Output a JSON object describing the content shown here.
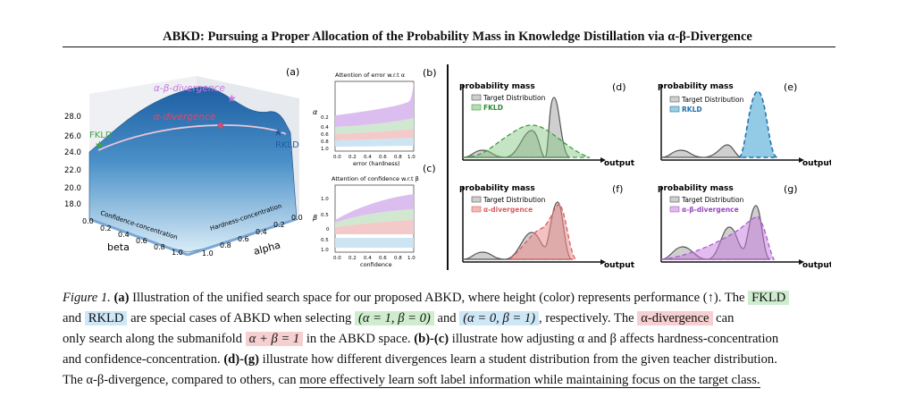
{
  "paper": {
    "title": "ABKD: Pursuing a Proper Allocation of the Probability Mass in Knowledge Distillation via α-β-Divergence"
  },
  "figure": {
    "panel_a": {
      "label": "(a)",
      "z_ticks": [
        "28.0",
        "26.0",
        "24.0",
        "22.0",
        "20.0",
        "18.0"
      ],
      "beta_ticks": [
        "0.0",
        "0.2",
        "0.4",
        "0.6",
        "0.8",
        "1.0"
      ],
      "alpha_ticks": [
        "1.0",
        "0.8",
        "0.6",
        "0.4",
        "0.2",
        "0.0"
      ],
      "beta_axis_label": "beta",
      "alpha_axis_label": "alpha",
      "confidence_edge_label": "Confidence-concentration",
      "hardness_edge_label": "Hardness-concentration",
      "fkld_label": "FKLD",
      "rkld_label": "RKLD",
      "ab_label": "α-β-divergence",
      "a_label": "α-divergence"
    },
    "panel_b": {
      "label": "(b)",
      "title": "Attention of error w.r.t α",
      "ylabel": "α",
      "xlabel": "error (hardness)",
      "y_ticks": [
        "0.2",
        "0.4",
        "0.6",
        "0.8",
        "1.0"
      ],
      "x_ticks": [
        "0.0",
        "0.2",
        "0.4",
        "0.6",
        "0.8",
        "1.0"
      ]
    },
    "panel_c": {
      "label": "(c)",
      "title": "Attention of confidence w.r.t β",
      "ylabel": "β",
      "xlabel": "confidence",
      "y_ticks": [
        "1.0",
        "0.5",
        "0",
        "0.5",
        "1.0"
      ],
      "x_ticks": [
        "0.0",
        "0.2",
        "0.4",
        "0.6",
        "0.8",
        "1.0"
      ]
    },
    "panel_d": {
      "label": "(d)",
      "ylabel": "probability mass",
      "xlabel": "output",
      "legend_target": "Target Distribution",
      "legend_student": "FKLD",
      "color": "#7cc47c"
    },
    "panel_e": {
      "label": "(e)",
      "ylabel": "probability mass",
      "xlabel": "output",
      "legend_target": "Target Distribution",
      "legend_student": "RKLD",
      "color": "#3a9fd0"
    },
    "panel_f": {
      "label": "(f)",
      "ylabel": "probability mass",
      "xlabel": "output",
      "legend_target": "Target Distribution",
      "legend_student": "α-divergence",
      "color": "#ec8d8d"
    },
    "panel_g": {
      "label": "(g)",
      "ylabel": "probability mass",
      "xlabel": "output",
      "legend_target": "Target Distribution",
      "legend_student": "α-β-divergence",
      "color": "#c779e0"
    }
  },
  "caption": {
    "figure_label": "Figure 1.",
    "a_bold": "(a)",
    "s1": " Illustration of the unified search space for our proposed ABKD, where height (color) represents performance (↑). The ",
    "fkld": "FKLD",
    "and": "and",
    "rkld": "RKLD",
    "s2": " are special cases of ABKD when selecting ",
    "cond1": "(α = 1, β = 0)",
    "and2": " and ",
    "cond2": "(α = 0, β = 1)",
    "s3": ", respectively. The ",
    "alpha_div": "α-divergence",
    "can": " can",
    "s4": "only search along the submanifold ",
    "submanifold": "α + β = 1",
    "s5": " in the ABKD space. ",
    "bc_bold": "(b)-(c)",
    "s6": " illustrate how adjusting α and β affects hardness-concentration",
    "s7": "and confidence-concentration. ",
    "dg_bold": "(d)-(g)",
    "s8": " illustrate how different divergences learn a student distribution from the given teacher distribution.",
    "s9": "The α-β-divergence, compared to others, can ",
    "underlined": "more effectively learn soft label information while maintaining focus on the target class."
  }
}
